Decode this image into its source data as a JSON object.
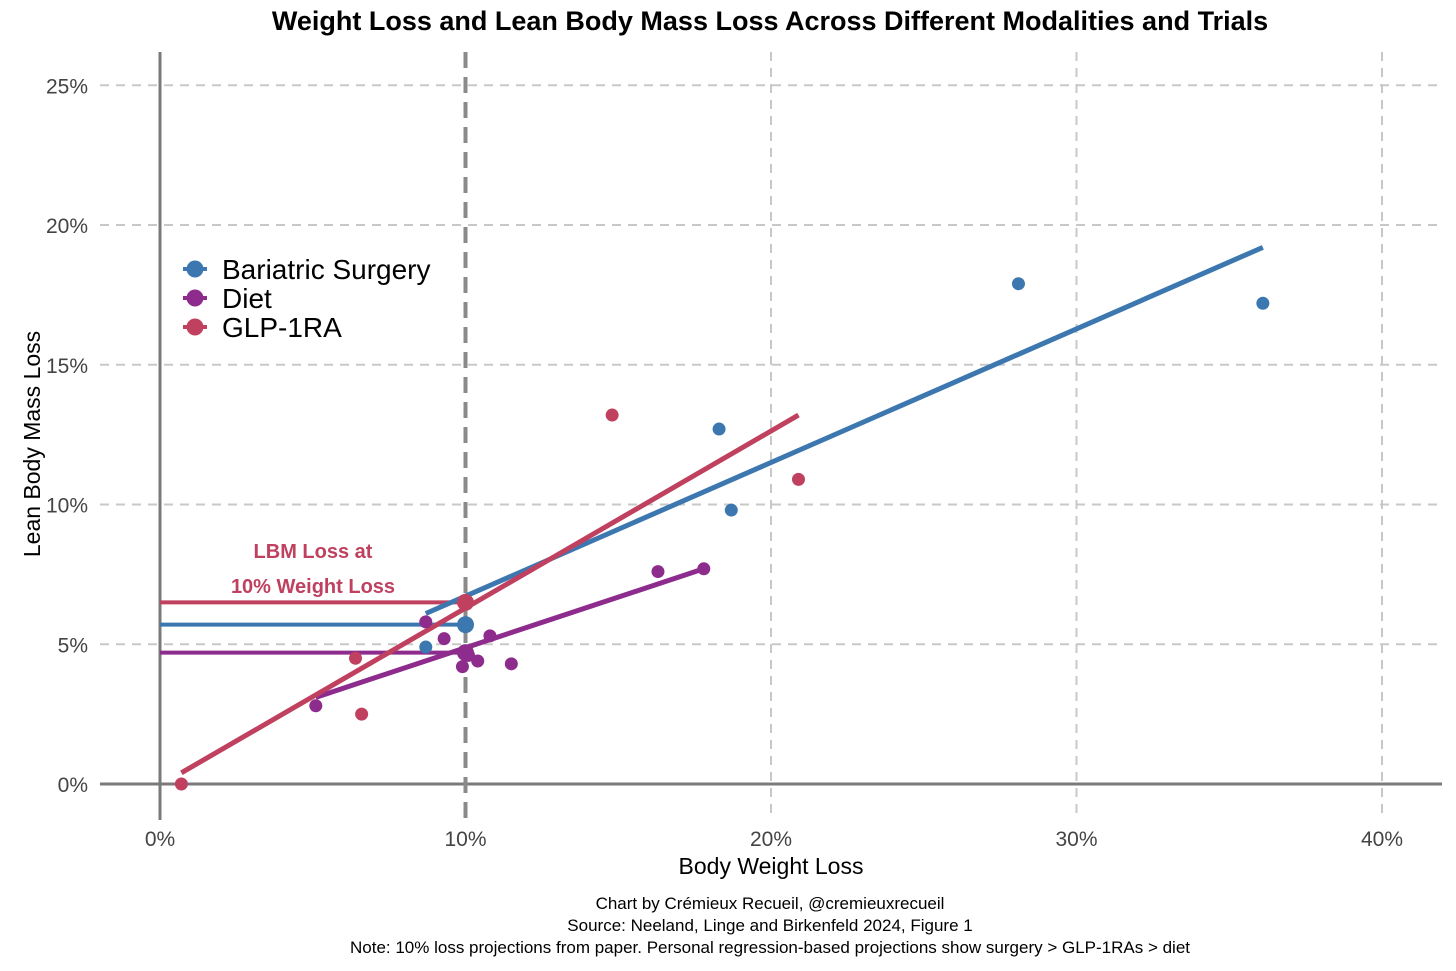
{
  "chart_data": {
    "type": "scatter",
    "title": "Weight Loss and Lean Body Mass Loss Across Different Modalities and Trials",
    "xlabel": "Body Weight Loss",
    "ylabel": "Lean Body Mass Loss",
    "xlim": [
      -2,
      42
    ],
    "ylim": [
      -1.5,
      26
    ],
    "x_ticks": [
      0,
      10,
      20,
      30,
      40
    ],
    "x_tick_labels": [
      "0%",
      "10%",
      "20%",
      "30%",
      "40%"
    ],
    "y_ticks": [
      0,
      5,
      10,
      15,
      20,
      25
    ],
    "y_tick_labels": [
      "0%",
      "5%",
      "10%",
      "15%",
      "20%",
      "25%"
    ],
    "grid": true,
    "legend_position": "upper-left",
    "reference_line_x": 10,
    "annotation": {
      "line1": "LBM Loss at",
      "line2": "10% Weight Loss",
      "color": "#C0415F"
    },
    "series": [
      {
        "name": "Bariatric Surgery",
        "color": "#3D77AF",
        "points": [
          [
            8.7,
            4.9
          ],
          [
            18.3,
            12.7
          ],
          [
            18.7,
            9.8
          ],
          [
            28.1,
            17.9
          ],
          [
            36.1,
            17.2
          ]
        ],
        "fit_line": [
          [
            8.7,
            6.1
          ],
          [
            36.1,
            19.2
          ]
        ],
        "projection_10pct": 5.7
      },
      {
        "name": "Diet",
        "color": "#8E2C8E",
        "points": [
          [
            5.1,
            2.8
          ],
          [
            8.7,
            5.8
          ],
          [
            9.3,
            5.2
          ],
          [
            9.9,
            4.2
          ],
          [
            10.1,
            4.6
          ],
          [
            10.4,
            4.4
          ],
          [
            10.8,
            5.3
          ],
          [
            11.5,
            4.3
          ],
          [
            16.3,
            7.6
          ],
          [
            17.8,
            7.7
          ]
        ],
        "fit_line": [
          [
            5.1,
            3.1
          ],
          [
            17.8,
            7.7
          ]
        ],
        "projection_10pct": 4.7
      },
      {
        "name": "GLP-1RA",
        "color": "#C0415F",
        "points": [
          [
            0.7,
            0.0
          ],
          [
            6.4,
            4.5
          ],
          [
            6.6,
            2.5
          ],
          [
            14.8,
            13.2
          ],
          [
            20.9,
            10.9
          ]
        ],
        "fit_line": [
          [
            0.7,
            0.4
          ],
          [
            20.9,
            13.2
          ]
        ],
        "projection_10pct": 6.5
      }
    ]
  },
  "captions": {
    "credit": "Chart by Crémieux Recueil, @cremieuxrecueil",
    "source": "Source: Neeland, Linge and Birkenfeld 2024, Figure 1",
    "note": "Note: 10% loss projections from paper. Personal regression-based projections show surgery > GLP-1RAs > diet"
  }
}
